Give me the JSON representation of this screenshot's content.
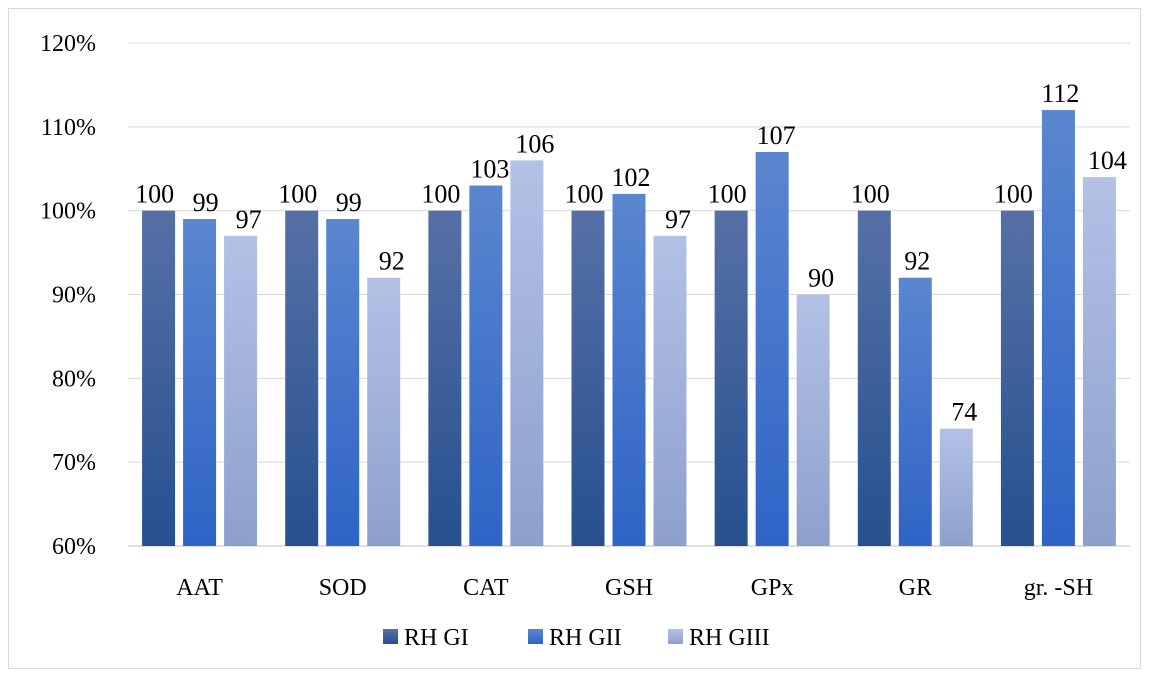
{
  "chart_data": {
    "type": "bar",
    "title": "",
    "xlabel": "",
    "ylabel": "",
    "categories": [
      "AAT",
      "SOD",
      "CAT",
      "GSH",
      "GPx",
      "GR",
      "gr. -SH"
    ],
    "series": [
      {
        "name": "RH GI",
        "values": [
          100,
          100,
          100,
          100,
          100,
          100,
          100
        ]
      },
      {
        "name": "RH GII",
        "values": [
          99,
          99,
          103,
          102,
          107,
          92,
          112
        ]
      },
      {
        "name": "RH GIII",
        "values": [
          97,
          92,
          106,
          97,
          90,
          74,
          104
        ]
      }
    ],
    "y_ticks": [
      "60%",
      "70%",
      "80%",
      "90%",
      "100%",
      "110%",
      "120%"
    ],
    "ylim": [
      60,
      120
    ],
    "grid": true,
    "legend_position": "bottom",
    "colors": {
      "RH GI": [
        "#5670a6",
        "#26508f"
      ],
      "RH GII": [
        "#5b86cf",
        "#2e64c6"
      ],
      "RH GIII": [
        "#b3c1e6",
        "#8da0cd"
      ],
      "grid": "#d9d9d9",
      "axis": "#bfbfbf"
    }
  }
}
